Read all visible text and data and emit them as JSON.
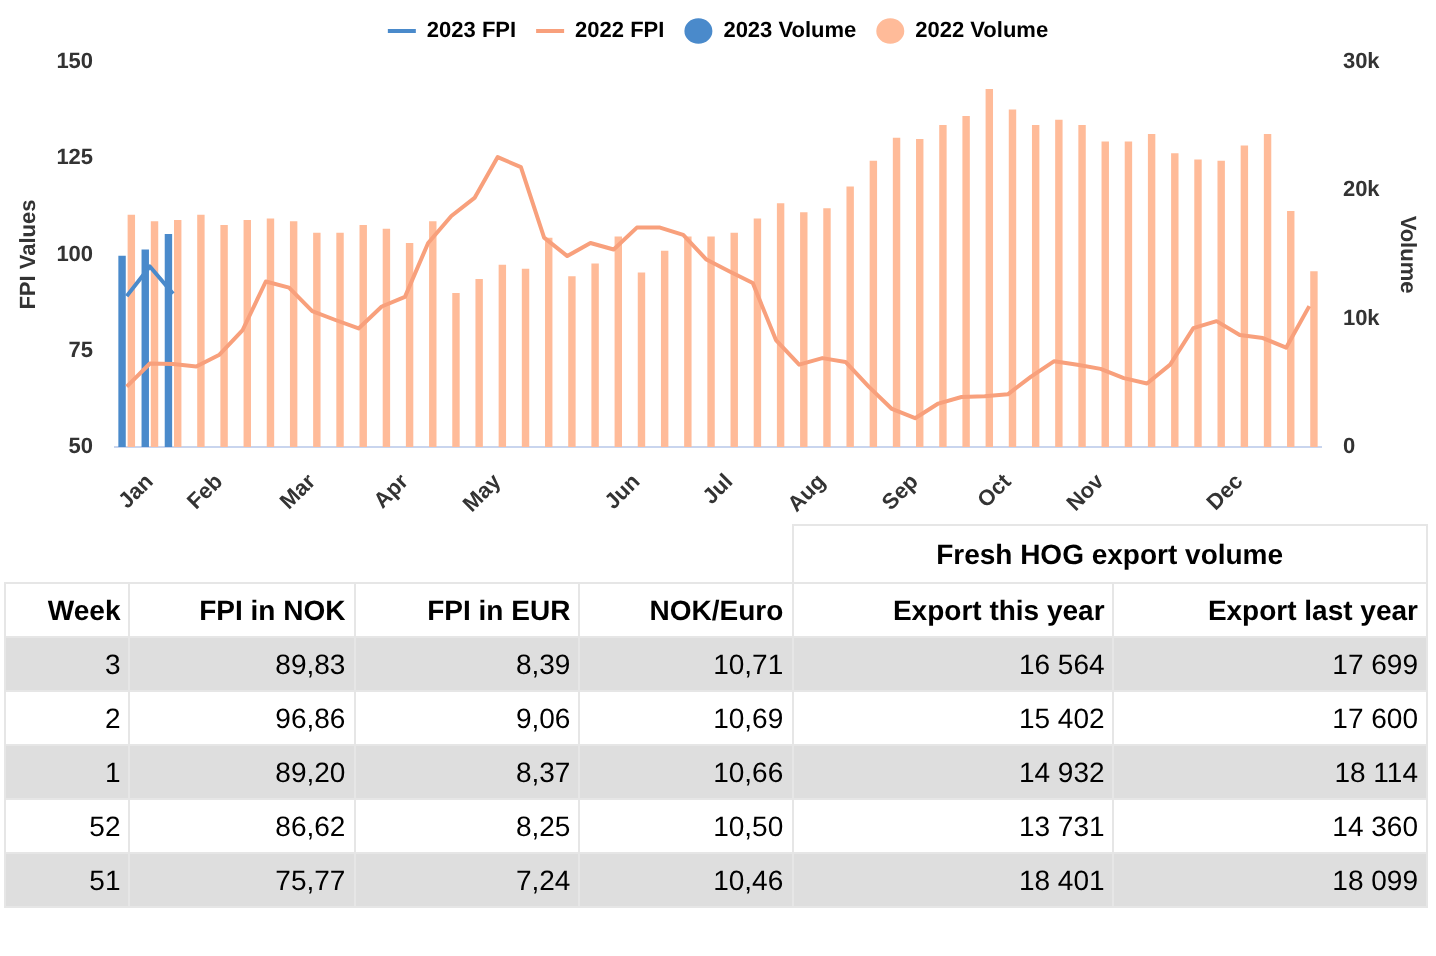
{
  "chart_data": {
    "type": "bar",
    "categories": [
      null,
      "Jan",
      null,
      null,
      "Feb",
      null,
      null,
      null,
      "Mar",
      null,
      null,
      null,
      "Apr",
      null,
      null,
      null,
      "May",
      null,
      null,
      null,
      null,
      null,
      "Jun",
      null,
      null,
      null,
      "Jul",
      null,
      null,
      null,
      "Aug",
      null,
      null,
      null,
      "Sep",
      null,
      null,
      null,
      "Oct",
      null,
      null,
      null,
      "Nov",
      null,
      null,
      null,
      null,
      null,
      "Dec",
      null,
      null,
      null
    ],
    "ylabel": "FPI Values",
    "y2label": "Volume",
    "ylim": [
      50,
      150
    ],
    "yticks": [
      50,
      75,
      100,
      125,
      150
    ],
    "y2lim": [
      0,
      30000
    ],
    "y2ticks": [
      {
        "value": 0,
        "label": "0"
      },
      {
        "value": 10000,
        "label": "10k"
      },
      {
        "value": 20000,
        "label": "20k"
      },
      {
        "value": 30000,
        "label": "30k"
      }
    ],
    "legend": "top",
    "grid": false,
    "marker": "none",
    "line_style": "solid",
    "series": [
      {
        "name": "2023 FPI",
        "type": "line",
        "color": "#4a8acb",
        "values": [
          89.2,
          96.9,
          89.8,
          null,
          null,
          null,
          null,
          null,
          null,
          null,
          null,
          null,
          null,
          null,
          null,
          null,
          null,
          null,
          null,
          null,
          null,
          null,
          null,
          null,
          null,
          null,
          null,
          null,
          null,
          null,
          null,
          null,
          null,
          null,
          null,
          null,
          null,
          null,
          null,
          null,
          null,
          null,
          null,
          null,
          null,
          null,
          null,
          null,
          null,
          null,
          null,
          null
        ]
      },
      {
        "name": "2022 FPI",
        "type": "line",
        "color": "#f8a07c",
        "values": [
          65.7,
          71.7,
          71.6,
          70.9,
          74,
          80.4,
          93,
          91.4,
          85.3,
          83,
          80.8,
          86.5,
          89,
          103,
          110,
          114.7,
          125.3,
          122.7,
          104.4,
          99.6,
          103,
          101.3,
          107,
          107,
          105.1,
          98.7,
          95.6,
          92.6,
          77.8,
          71.4,
          73.1,
          72.1,
          65.7,
          59.9,
          57.5,
          61.3,
          63,
          63.2,
          63.7,
          68.3,
          72.3,
          71.4,
          70.3,
          67.9,
          66.5,
          71.4,
          80.9,
          82.7,
          79.1,
          78.3,
          75.8,
          86.6
        ]
      },
      {
        "name": "2023 Volume",
        "axis": "y2",
        "color": "#4a8acb",
        "values": [
          14900,
          15400,
          16600,
          null,
          null,
          null,
          null,
          null,
          null,
          null,
          null,
          null,
          null,
          null,
          null,
          null,
          null,
          null,
          null,
          null,
          null,
          null,
          null,
          null,
          null,
          null,
          null,
          null,
          null,
          null,
          null,
          null,
          null,
          null,
          null,
          null,
          null,
          null,
          null,
          null,
          null,
          null,
          null,
          null,
          null,
          null,
          null,
          null,
          null,
          null,
          null,
          null
        ]
      },
      {
        "name": "2022 Volume",
        "axis": "y2",
        "color": "#ffbb99",
        "values": [
          18100,
          17600,
          17700,
          18100,
          17300,
          17700,
          17800,
          17600,
          16700,
          16700,
          17300,
          17000,
          15900,
          17600,
          12000,
          13100,
          14200,
          13900,
          16300,
          13300,
          14300,
          16400,
          13600,
          15300,
          16400,
          16400,
          16700,
          17800,
          19000,
          18300,
          18600,
          20300,
          22300,
          24100,
          24000,
          25100,
          25800,
          27900,
          26300,
          25100,
          25500,
          25100,
          23800,
          23800,
          24400,
          22900,
          22400,
          22300,
          23500,
          24400,
          18400,
          13700
        ]
      }
    ],
    "annotations": [
      "Fresh HOG export volume",
      "Week",
      "FPI in NOK",
      "FPI in EUR",
      "NOK/Euro",
      "Export this year",
      "Export last year",
      "3",
      "89,83",
      "8,39",
      "10,71",
      "16 564",
      "17 699",
      "2",
      "96,86",
      "9,06",
      "10,69",
      "15 402",
      "17 600",
      "1",
      "89,20",
      "8,37",
      "10,66",
      "14 932",
      "18 114",
      "52",
      "86,62",
      "8,25",
      "10,50",
      "13 731",
      "14 360",
      "51",
      "75,77",
      "7,24",
      "10,46",
      "18 401",
      "18 099"
    ]
  }
}
